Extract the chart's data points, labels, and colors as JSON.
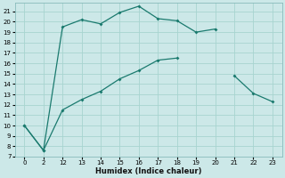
{
  "xlabel": "Humidex (Indice chaleur)",
  "bg_color": "#cce8e8",
  "line_color": "#1a7a6e",
  "grid_color": "#a8d4d0",
  "xlabels": [
    "0",
    "2",
    "12",
    "13",
    "14",
    "15",
    "16",
    "17",
    "18",
    "19",
    "20",
    "21",
    "22",
    "23"
  ],
  "ylim": [
    7,
    21.8
  ],
  "yticks": [
    7,
    8,
    9,
    10,
    11,
    12,
    13,
    14,
    15,
    16,
    17,
    18,
    19,
    20,
    21
  ],
  "line1_y": [
    10,
    7.6,
    19.5,
    20.2,
    19.8,
    20.9,
    21.5,
    20.3,
    20.1,
    19.0,
    19.3,
    null,
    null,
    null
  ],
  "line2_y": [
    10,
    7.6,
    11.5,
    12.5,
    13.3,
    14.5,
    15.3,
    16.3,
    16.5,
    null,
    null,
    14.8,
    13.1,
    12.3
  ]
}
